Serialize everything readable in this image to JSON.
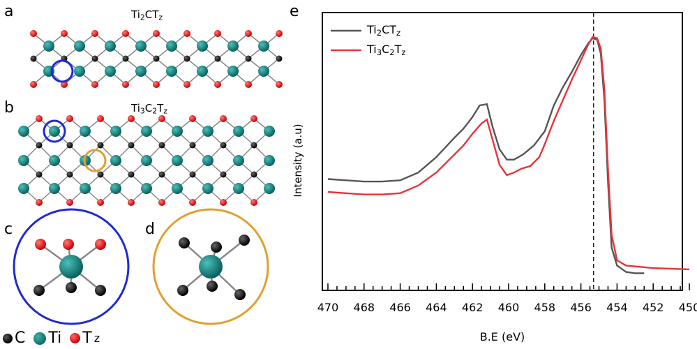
{
  "panels": {
    "a": "a",
    "b": "b",
    "c": "c",
    "d": "d",
    "e": "e"
  },
  "structures": {
    "a_title": {
      "base1": "Ti",
      "sub1": "2",
      "base2": "CT",
      "sub2": "z"
    },
    "b_title": {
      "base1": "Ti",
      "sub1": "3",
      "base2": "C",
      "sub2": "2",
      "base3": "T",
      "sub3": "z"
    }
  },
  "atom_legend": {
    "c": "C",
    "ti": "Ti",
    "t_base": "T",
    "t_sub": "z"
  },
  "colors": {
    "ti": "#127472",
    "c": "#111111",
    "t": "#e00000",
    "blue_circle": "#1f2ad6",
    "orange_circle": "#e0a030",
    "series1": "#555555",
    "series2": "#e8333a"
  },
  "chart_data": {
    "type": "line",
    "xlabel": "B.E (eV)",
    "ylabel": "Intensity (a.u)",
    "xlim": [
      470,
      450
    ],
    "x_reversed": true,
    "x_ticks": [
      470,
      468,
      466,
      464,
      462,
      460,
      458,
      456,
      454,
      452,
      450
    ],
    "ylim": [
      0,
      1
    ],
    "vline": 455.3,
    "legend_placement": "top-left",
    "series": [
      {
        "name": "Ti2CTz",
        "legend": {
          "base1": "Ti",
          "sub1": "2",
          "base2": "CT",
          "sub2": "z"
        },
        "color": "#555555",
        "points": [
          [
            470,
            0.415
          ],
          [
            469,
            0.41
          ],
          [
            468,
            0.405
          ],
          [
            467,
            0.405
          ],
          [
            466,
            0.41
          ],
          [
            465,
            0.44
          ],
          [
            464,
            0.5
          ],
          [
            463,
            0.575
          ],
          [
            462.5,
            0.61
          ],
          [
            462,
            0.655
          ],
          [
            461.6,
            0.7
          ],
          [
            461.2,
            0.705
          ],
          [
            460.9,
            0.62
          ],
          [
            460.5,
            0.53
          ],
          [
            460.1,
            0.49
          ],
          [
            459.7,
            0.49
          ],
          [
            459.2,
            0.51
          ],
          [
            458.6,
            0.545
          ],
          [
            458,
            0.6
          ],
          [
            457.5,
            0.7
          ],
          [
            457,
            0.77
          ],
          [
            456.5,
            0.83
          ],
          [
            456,
            0.895
          ],
          [
            455.6,
            0.94
          ],
          [
            455.35,
            0.96
          ],
          [
            455.1,
            0.955
          ],
          [
            454.9,
            0.9
          ],
          [
            454.7,
            0.72
          ],
          [
            454.5,
            0.4
          ],
          [
            454.3,
            0.15
          ],
          [
            454.0,
            0.08
          ],
          [
            453.5,
            0.055
          ],
          [
            453,
            0.05
          ],
          [
            452.5,
            0.05
          ]
        ]
      },
      {
        "name": "Ti3C2Tz",
        "legend": {
          "base1": "Ti",
          "sub1": "3",
          "base2": "C",
          "sub2": "2",
          "base3": "T",
          "sub3": "z"
        },
        "color": "#e8333a",
        "points": [
          [
            470,
            0.365
          ],
          [
            469,
            0.36
          ],
          [
            468,
            0.355
          ],
          [
            467,
            0.355
          ],
          [
            466,
            0.36
          ],
          [
            465,
            0.39
          ],
          [
            464,
            0.44
          ],
          [
            463,
            0.51
          ],
          [
            462.5,
            0.545
          ],
          [
            462,
            0.59
          ],
          [
            461.5,
            0.63
          ],
          [
            461.2,
            0.645
          ],
          [
            460.9,
            0.57
          ],
          [
            460.5,
            0.47
          ],
          [
            460.1,
            0.43
          ],
          [
            459.7,
            0.44
          ],
          [
            459.3,
            0.455
          ],
          [
            458.8,
            0.465
          ],
          [
            458.3,
            0.5
          ],
          [
            458,
            0.55
          ],
          [
            457.5,
            0.64
          ],
          [
            457,
            0.72
          ],
          [
            456.5,
            0.8
          ],
          [
            456,
            0.875
          ],
          [
            455.6,
            0.935
          ],
          [
            455.35,
            0.965
          ],
          [
            455.1,
            0.96
          ],
          [
            454.9,
            0.92
          ],
          [
            454.7,
            0.76
          ],
          [
            454.5,
            0.45
          ],
          [
            454.3,
            0.2
          ],
          [
            454.0,
            0.1
          ],
          [
            453.5,
            0.08
          ],
          [
            452,
            0.07
          ],
          [
            450,
            0.065
          ]
        ]
      }
    ]
  }
}
